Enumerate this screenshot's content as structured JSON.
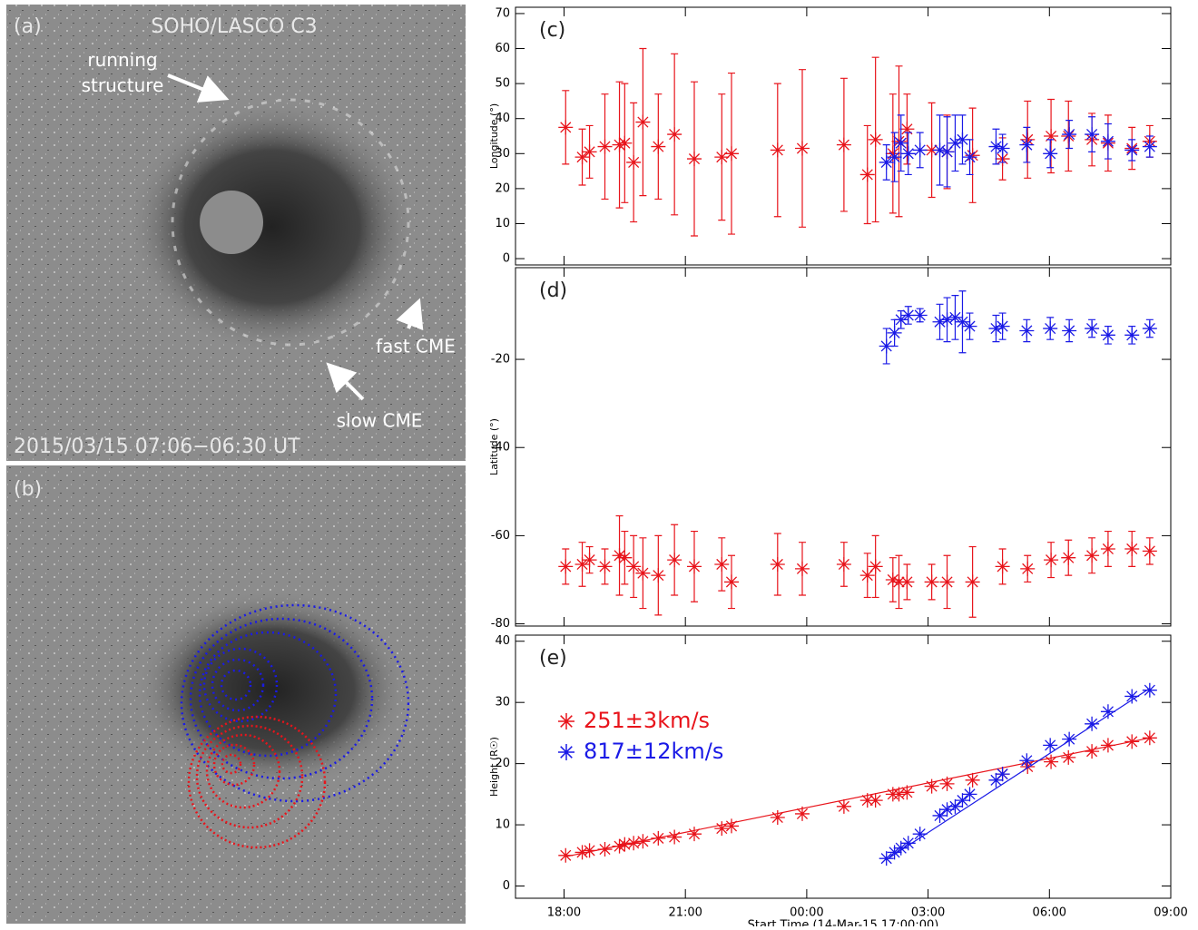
{
  "images": [
    {
      "label": "(a)",
      "title": "SOHO/LASCO C3",
      "annotations": [
        "running structure",
        "fast CME",
        "slow CME"
      ],
      "timestamp": "2015/03/15 07:06−06:30 UT"
    },
    {
      "label": "(b)"
    }
  ],
  "chart_data": [
    {
      "type": "errorbar",
      "label": "(c)",
      "ylabel": "Longitude (°)",
      "xlim": [
        -0.2,
        16
      ],
      "ylim": [
        -1.8,
        71.8
      ],
      "yticks": [
        0,
        10,
        20,
        30,
        40,
        50,
        60,
        70
      ],
      "series": [
        {
          "color": "#e8141b",
          "x": [
            1.04,
            1.45,
            1.63,
            2.01,
            2.37,
            2.5,
            2.72,
            2.95,
            3.33,
            3.73,
            4.22,
            4.9,
            5.14,
            6.28,
            6.89,
            7.92,
            8.5,
            8.7,
            9.13,
            9.28,
            9.48,
            10.09,
            10.47,
            11.1,
            11.84,
            12.46,
            13.04,
            13.47,
            14.05,
            14.45,
            15.04,
            15.48
          ],
          "values": [
            37.5,
            29,
            30.5,
            32,
            32.5,
            33,
            27.5,
            39,
            32,
            35.5,
            28.5,
            29,
            30,
            31,
            31.5,
            32.5,
            24,
            34,
            30,
            33.5,
            37,
            31,
            30.5,
            29.5,
            28.5,
            34,
            35,
            35,
            34,
            33,
            31.5,
            33.5
          ],
          "errors": [
            10.5,
            8,
            7.5,
            15,
            18,
            17,
            17,
            21,
            15,
            23,
            22,
            18,
            23,
            19,
            22.5,
            19,
            14,
            23.5,
            17,
            21.5,
            10,
            13.5,
            10.5,
            13.5,
            6,
            11,
            10.5,
            10,
            7.5,
            8,
            6,
            4.5
          ]
        },
        {
          "color": "#1a1ae6",
          "x": [
            8.97,
            9.17,
            9.33,
            9.51,
            9.8,
            10.29,
            10.47,
            10.67,
            10.85,
            11.03,
            11.68,
            11.84,
            12.44,
            13.02,
            13.49,
            14.05,
            14.45,
            15.04,
            15.48
          ],
          "values": [
            27.5,
            29,
            33,
            30,
            31,
            31,
            30.5,
            33,
            34,
            29,
            32,
            31.5,
            32.5,
            30,
            35.5,
            35.5,
            33.5,
            31,
            32
          ],
          "errors": [
            5,
            7,
            8,
            6,
            5,
            10,
            10,
            8,
            7,
            5,
            5,
            4,
            5,
            4,
            4,
            5,
            5,
            3,
            3
          ]
        }
      ]
    },
    {
      "type": "errorbar",
      "label": "(d)",
      "ylabel": "Latitude (°)",
      "xlim": [
        -0.2,
        16
      ],
      "ylim": [
        -80.5,
        0.8
      ],
      "yticks": [
        -80,
        -60,
        -40,
        -20
      ],
      "series": [
        {
          "color": "#e8141b",
          "x": [
            1.04,
            1.45,
            1.63,
            2.01,
            2.37,
            2.5,
            2.72,
            2.95,
            3.33,
            3.73,
            4.22,
            4.9,
            5.14,
            6.28,
            6.89,
            7.92,
            8.5,
            8.7,
            9.13,
            9.28,
            9.48,
            10.09,
            10.47,
            11.1,
            11.84,
            12.46,
            13.04,
            13.47,
            14.05,
            14.45,
            15.04,
            15.48
          ],
          "values": [
            -67,
            -66.5,
            -65.5,
            -67,
            -64.5,
            -65,
            -67,
            -68.5,
            -69,
            -65.5,
            -67,
            -66.5,
            -70.5,
            -66.5,
            -67.5,
            -66.5,
            -69,
            -67,
            -70,
            -70.5,
            -70.5,
            -70.5,
            -70.5,
            -70.5,
            -67,
            -67.5,
            -65.5,
            -65,
            -64.5,
            -63,
            -63,
            -63.5
          ],
          "errors": [
            4,
            5,
            3,
            4,
            9,
            6,
            7,
            8,
            9,
            8,
            8,
            6,
            6,
            7,
            6,
            5,
            5,
            7,
            5,
            6,
            4,
            4,
            6,
            8,
            4,
            3,
            4,
            4,
            4,
            4,
            4,
            3
          ]
        },
        {
          "color": "#1a1ae6",
          "x": [
            8.97,
            9.17,
            9.33,
            9.51,
            9.8,
            10.29,
            10.47,
            10.67,
            10.85,
            11.03,
            11.68,
            11.84,
            12.44,
            13.02,
            13.49,
            14.05,
            14.45,
            15.04,
            15.48
          ],
          "values": [
            -17,
            -14,
            -11,
            -10,
            -10,
            -11.5,
            -11,
            -10.5,
            -11.5,
            -12.5,
            -13,
            -12.5,
            -13.5,
            -13,
            -13.5,
            -13,
            -14.5,
            -14.5,
            -13
          ],
          "errors": [
            4,
            3,
            2,
            2,
            1.5,
            4,
            5,
            5,
            7,
            3,
            3,
            3,
            2.5,
            2.5,
            2.5,
            2,
            2,
            2,
            2
          ]
        }
      ]
    },
    {
      "type": "scatter",
      "label": "(e)",
      "ylabel": "Height (R☉)",
      "xlabel": "Start Time (14-Mar-15 17:00:00)",
      "xlim": [
        -0.2,
        16
      ],
      "ylim": [
        -2,
        41
      ],
      "yticks": [
        0,
        10,
        20,
        30,
        40
      ],
      "xticks": [
        {
          "value": 1,
          "label": "18:00"
        },
        {
          "value": 4,
          "label": "21:00"
        },
        {
          "value": 7,
          "label": "00:00"
        },
        {
          "value": 10,
          "label": "03:00"
        },
        {
          "value": 13,
          "label": "06:00"
        },
        {
          "value": 16,
          "label": "09:00"
        }
      ],
      "series": [
        {
          "name": "251±3km/s",
          "color": "#e8141b",
          "x": [
            1.04,
            1.45,
            1.63,
            2.01,
            2.37,
            2.5,
            2.72,
            2.95,
            3.33,
            3.73,
            4.22,
            4.9,
            5.14,
            6.28,
            6.89,
            7.92,
            8.5,
            8.7,
            9.13,
            9.28,
            9.48,
            10.09,
            10.47,
            11.1,
            11.84,
            12.46,
            13.04,
            13.47,
            14.05,
            14.45,
            15.04,
            15.48
          ],
          "values": [
            5,
            5.5,
            5.8,
            6,
            6.5,
            6.8,
            7,
            7.3,
            7.8,
            8,
            8.5,
            9.4,
            9.8,
            11.2,
            11.8,
            13,
            14,
            14,
            15,
            15,
            15.3,
            16.3,
            16.7,
            17.3,
            18.3,
            19.5,
            20.3,
            21,
            22,
            23,
            23.6,
            24.2
          ],
          "fit_x": [
            1.04,
            15.48
          ],
          "fit_values": [
            4.8,
            24.2
          ]
        },
        {
          "name": "817±12km/s",
          "color": "#1a1ae6",
          "x": [
            8.97,
            9.17,
            9.33,
            9.51,
            9.8,
            10.29,
            10.47,
            10.67,
            10.85,
            11.03,
            11.68,
            11.84,
            12.44,
            13.02,
            13.49,
            14.05,
            14.45,
            15.04,
            15.48
          ],
          "values": [
            4.5,
            5.5,
            6.2,
            7,
            8.5,
            11.5,
            12.5,
            13,
            14,
            15,
            17.3,
            18.3,
            20.5,
            23,
            24,
            26.5,
            28.5,
            31,
            32
          ],
          "fit_x": [
            8.97,
            15.48
          ],
          "fit_values": [
            4.3,
            32.3
          ]
        }
      ]
    }
  ]
}
